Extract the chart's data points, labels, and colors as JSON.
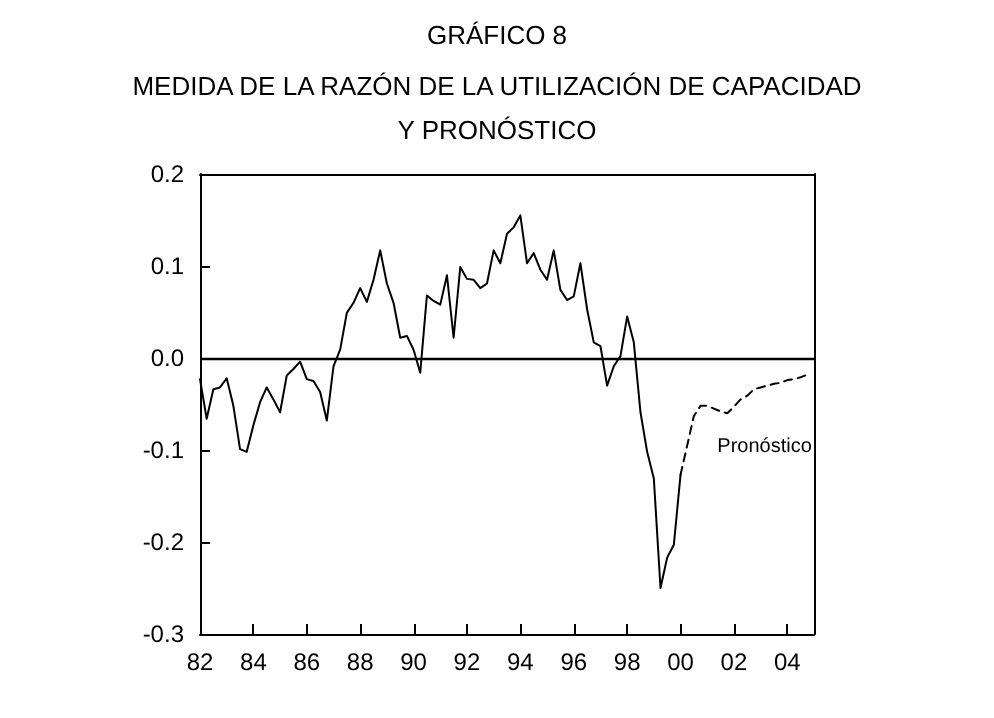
{
  "chart_data": {
    "type": "line",
    "title": "GRÁFICO 8",
    "subtitle": "MEDIDA DE LA RAZÓN DE LA UTILIZACIÓN DE CAPACIDAD\nY PRONÓSTICO",
    "xlim": [
      1982,
      2005
    ],
    "xticks": [
      {
        "value": 1982,
        "label": "82"
      },
      {
        "value": 1984,
        "label": "84"
      },
      {
        "value": 1986,
        "label": "86"
      },
      {
        "value": 1988,
        "label": "88"
      },
      {
        "value": 1990,
        "label": "90"
      },
      {
        "value": 1992,
        "label": "92"
      },
      {
        "value": 1994,
        "label": "94"
      },
      {
        "value": 1996,
        "label": "96"
      },
      {
        "value": 1998,
        "label": "98"
      },
      {
        "value": 2000,
        "label": "00"
      },
      {
        "value": 2002,
        "label": "02"
      },
      {
        "value": 2004,
        "label": "04"
      }
    ],
    "ylim": [
      -0.3,
      0.2
    ],
    "yticks": [
      {
        "value": -0.3,
        "label": "-0.3"
      },
      {
        "value": -0.2,
        "label": "-0.2"
      },
      {
        "value": -0.1,
        "label": "-0.1"
      },
      {
        "value": 0,
        "label": "0.0"
      },
      {
        "value": 0.1,
        "label": "0.1"
      },
      {
        "value": 0.2,
        "label": "0.2"
      }
    ],
    "marker": "none",
    "ref_lines": [
      {
        "axis": "y",
        "value": 0,
        "color": "#000000"
      }
    ],
    "annotations": [
      "Pronóstico"
    ],
    "series": [
      {
        "color": "#000000",
        "line_style": "solid",
        "x": [
          1982,
          1982.25,
          1982.5,
          1982.75,
          1983,
          1983.25,
          1983.5,
          1983.75,
          1984,
          1984.25,
          1984.5,
          1984.75,
          1985,
          1985.25,
          1985.5,
          1985.75,
          1986,
          1986.25,
          1986.5,
          1986.75,
          1987,
          1987.25,
          1987.5,
          1987.75,
          1988,
          1988.25,
          1988.5,
          1988.75,
          1989,
          1989.25,
          1989.5,
          1989.75,
          1990,
          1990.25,
          1990.5,
          1990.75,
          1991,
          1991.25,
          1991.5,
          1991.75,
          1992,
          1992.25,
          1992.5,
          1992.75,
          1993,
          1993.25,
          1993.5,
          1993.75,
          1994,
          1994.25,
          1994.5,
          1994.75,
          1995,
          1995.25,
          1995.5,
          1995.75,
          1996,
          1996.25,
          1996.5,
          1996.75,
          1997,
          1997.25,
          1997.5,
          1997.75,
          1998,
          1998.25,
          1998.5,
          1998.75,
          1999,
          1999.25,
          1999.5,
          1999.75,
          2000
        ],
        "values": [
          -0.023,
          -0.066,
          -0.034,
          -0.032,
          -0.022,
          -0.052,
          -0.099,
          -0.102,
          -0.073,
          -0.048,
          -0.032,
          -0.045,
          -0.059,
          -0.019,
          -0.012,
          -0.004,
          -0.023,
          -0.025,
          -0.037,
          -0.068,
          -0.009,
          0.009,
          0.049,
          0.06,
          0.076,
          0.061,
          0.085,
          0.117,
          0.081,
          0.06,
          0.022,
          0.024,
          0.009,
          -0.016,
          0.068,
          0.062,
          0.058,
          0.09,
          0.022,
          0.099,
          0.086,
          0.085,
          0.076,
          0.081,
          0.117,
          0.103,
          0.135,
          0.142,
          0.155,
          0.103,
          0.114,
          0.096,
          0.085,
          0.117,
          0.074,
          0.063,
          0.067,
          0.103,
          0.053,
          0.017,
          0.013,
          -0.03,
          -0.009,
          0.002,
          0.045,
          0.017,
          -0.059,
          -0.102,
          -0.131,
          -0.25,
          -0.217,
          -0.203,
          -0.127
        ]
      },
      {
        "color": "#000000",
        "line_style": "dashed",
        "x": [
          2000,
          2000.25,
          2000.5,
          2000.75,
          2001,
          2001.25,
          2001.5,
          2001.75,
          2002,
          2002.25,
          2002.5,
          2002.75,
          2003,
          2003.25,
          2003.5,
          2003.75,
          2004,
          2004.25,
          2004.5,
          2004.75
        ],
        "values": [
          -0.127,
          -0.095,
          -0.063,
          -0.052,
          -0.052,
          -0.055,
          -0.058,
          -0.06,
          -0.053,
          -0.045,
          -0.041,
          -0.034,
          -0.032,
          -0.03,
          -0.028,
          -0.027,
          -0.024,
          -0.023,
          -0.021,
          -0.018
        ]
      }
    ]
  }
}
